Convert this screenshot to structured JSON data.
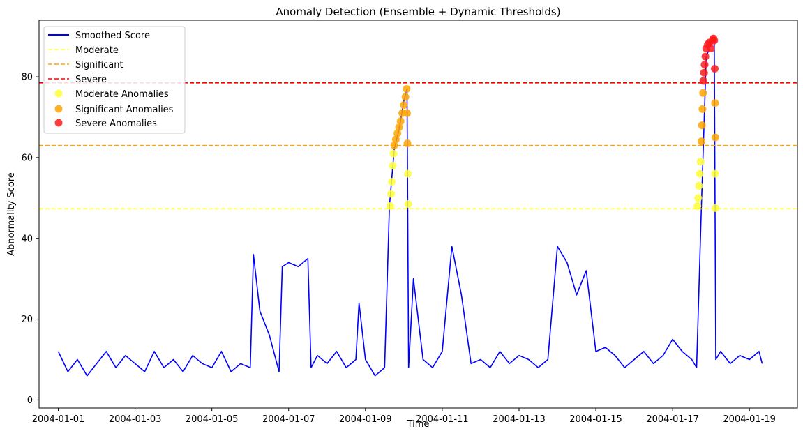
{
  "chart_data": {
    "type": "line",
    "title": "Anomaly Detection (Ensemble + Dynamic Thresholds)",
    "xlabel": "Time",
    "ylabel": "Abnormality Score",
    "x_range": [
      "2003-12-31T12:00",
      "2004-01-20T06:00"
    ],
    "ylim": [
      -2,
      94
    ],
    "x_ticks": [
      "2004-01-01",
      "2004-01-03",
      "2004-01-05",
      "2004-01-07",
      "2004-01-09",
      "2004-01-11",
      "2004-01-13",
      "2004-01-15",
      "2004-01-17",
      "2004-01-19"
    ],
    "y_ticks": [
      0,
      20,
      40,
      60,
      80
    ],
    "grid": false,
    "legend_position": "top-left",
    "thresholds": [
      {
        "name": "Moderate",
        "value": 47.3,
        "color": "#ffff33"
      },
      {
        "name": "Significant",
        "value": 63.0,
        "color": "#ffa500"
      },
      {
        "name": "Severe",
        "value": 78.5,
        "color": "#ff0000"
      }
    ],
    "series": [
      {
        "name": "Smoothed Score",
        "color": "#0000ff",
        "x": [
          "2004-01-01T00:00",
          "2004-01-01T06:00",
          "2004-01-01T12:00",
          "2004-01-01T18:00",
          "2004-01-02T00:00",
          "2004-01-02T06:00",
          "2004-01-02T12:00",
          "2004-01-02T18:00",
          "2004-01-03T00:00",
          "2004-01-03T06:00",
          "2004-01-03T12:00",
          "2004-01-03T18:00",
          "2004-01-04T00:00",
          "2004-01-04T06:00",
          "2004-01-04T12:00",
          "2004-01-04T18:00",
          "2004-01-05T00:00",
          "2004-01-05T06:00",
          "2004-01-05T12:00",
          "2004-01-05T18:00",
          "2004-01-06T00:00",
          "2004-01-06T02:00",
          "2004-01-06T06:00",
          "2004-01-06T12:00",
          "2004-01-06T18:00",
          "2004-01-06T20:00",
          "2004-01-07T00:00",
          "2004-01-07T06:00",
          "2004-01-07T12:00",
          "2004-01-07T14:00",
          "2004-01-07T18:00",
          "2004-01-08T00:00",
          "2004-01-08T06:00",
          "2004-01-08T12:00",
          "2004-01-08T18:00",
          "2004-01-08T20:00",
          "2004-01-09T00:00",
          "2004-01-09T06:00",
          "2004-01-09T12:00",
          "2004-01-09T15:00",
          "2004-01-09T18:00",
          "2004-01-09T21:00",
          "2004-01-10T00:00",
          "2004-01-10T02:00",
          "2004-01-10T03:00",
          "2004-01-10T06:00",
          "2004-01-10T12:00",
          "2004-01-10T18:00",
          "2004-01-11T00:00",
          "2004-01-11T06:00",
          "2004-01-11T12:00",
          "2004-01-11T18:00",
          "2004-01-12T00:00",
          "2004-01-12T06:00",
          "2004-01-12T12:00",
          "2004-01-12T18:00",
          "2004-01-13T00:00",
          "2004-01-13T06:00",
          "2004-01-13T12:00",
          "2004-01-13T18:00",
          "2004-01-14T00:00",
          "2004-01-14T06:00",
          "2004-01-14T12:00",
          "2004-01-14T18:00",
          "2004-01-15T00:00",
          "2004-01-15T06:00",
          "2004-01-15T12:00",
          "2004-01-15T18:00",
          "2004-01-16T00:00",
          "2004-01-16T06:00",
          "2004-01-16T12:00",
          "2004-01-16T18:00",
          "2004-01-17T00:00",
          "2004-01-17T06:00",
          "2004-01-17T12:00",
          "2004-01-17T15:00",
          "2004-01-17T18:00",
          "2004-01-17T21:00",
          "2004-01-18T00:00",
          "2004-01-18T02:00",
          "2004-01-18T03:00",
          "2004-01-18T06:00",
          "2004-01-18T12:00",
          "2004-01-18T18:00",
          "2004-01-19T00:00",
          "2004-01-19T06:00",
          "2004-01-19T08:00"
        ],
        "y": [
          12,
          7,
          10,
          6,
          9,
          12,
          8,
          11,
          9,
          7,
          12,
          8,
          10,
          7,
          11,
          9,
          8,
          12,
          7,
          9,
          8,
          36,
          22,
          16,
          7,
          33,
          34,
          33,
          35,
          8,
          11,
          9,
          12,
          8,
          10,
          24,
          10,
          6,
          8,
          48,
          62,
          67,
          74,
          77,
          8,
          30,
          10,
          8,
          12,
          38,
          26,
          9,
          10,
          8,
          12,
          9,
          11,
          10,
          8,
          10,
          38,
          34,
          26,
          32,
          12,
          13,
          11,
          8,
          10,
          12,
          9,
          11,
          15,
          12,
          10,
          8,
          48,
          85,
          88,
          89,
          10,
          12,
          9,
          11,
          10,
          12,
          9
        ]
      }
    ],
    "anomalies": [
      {
        "name": "Moderate Anomalies",
        "color": "#ffff33",
        "x": [
          "2004-01-09T15:30",
          "2004-01-09T16:00",
          "2004-01-09T16:30",
          "2004-01-09T17:00",
          "2004-01-09T17:30",
          "2004-01-10T02:30",
          "2004-01-10T02:45",
          "2004-01-17T15:30",
          "2004-01-17T16:00",
          "2004-01-17T16:30",
          "2004-01-17T17:00",
          "2004-01-17T17:30",
          "2004-01-18T02:30",
          "2004-01-18T02:45"
        ],
        "y": [
          48,
          51,
          54,
          58,
          61,
          56,
          48.5,
          48,
          50,
          53,
          56,
          59,
          56,
          47.5
        ]
      },
      {
        "name": "Significant Anomalies",
        "color": "#ffa500",
        "x": [
          "2004-01-09T18:00",
          "2004-01-09T19:00",
          "2004-01-09T20:00",
          "2004-01-09T21:00",
          "2004-01-09T22:00",
          "2004-01-09T23:00",
          "2004-01-10T00:00",
          "2004-01-10T01:00",
          "2004-01-10T01:45",
          "2004-01-10T02:00",
          "2004-01-10T02:15",
          "2004-01-17T18:00",
          "2004-01-17T18:20",
          "2004-01-17T18:40",
          "2004-01-17T19:00",
          "2004-01-18T02:30",
          "2004-01-18T02:40"
        ],
        "y": [
          63,
          64.5,
          66,
          67.5,
          69,
          71,
          73,
          75,
          77,
          71,
          63.5,
          64,
          68,
          72,
          76,
          73.5,
          65
        ]
      },
      {
        "name": "Severe Anomalies",
        "color": "#ff1a1a",
        "x": [
          "2004-01-17T19:15",
          "2004-01-17T19:40",
          "2004-01-17T20:00",
          "2004-01-17T20:30",
          "2004-01-17T21:00",
          "2004-01-17T22:00",
          "2004-01-17T23:00",
          "2004-01-18T00:00",
          "2004-01-18T01:00",
          "2004-01-18T01:30",
          "2004-01-18T02:00",
          "2004-01-18T02:20"
        ],
        "y": [
          79,
          81,
          83,
          85,
          87,
          88,
          88.5,
          87,
          89,
          89.5,
          89,
          82
        ]
      }
    ],
    "legend": [
      "Smoothed Score",
      "Moderate",
      "Significant",
      "Severe",
      "Moderate Anomalies",
      "Significant Anomalies",
      "Severe Anomalies"
    ]
  }
}
